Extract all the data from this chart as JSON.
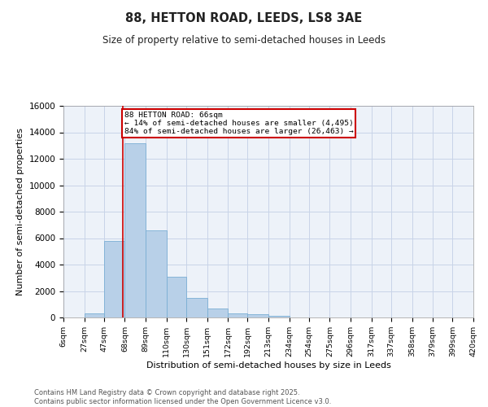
{
  "title": "88, HETTON ROAD, LEEDS, LS8 3AE",
  "subtitle": "Size of property relative to semi-detached houses in Leeds",
  "xlabel": "Distribution of semi-detached houses by size in Leeds",
  "ylabel": "Number of semi-detached properties",
  "annotation_line1": "88 HETTON ROAD: 66sqm",
  "annotation_line2": "← 14% of semi-detached houses are smaller (4,495)",
  "annotation_line3": "84% of semi-detached houses are larger (26,463) →",
  "bins": [
    6,
    27,
    47,
    68,
    89,
    110,
    130,
    151,
    172,
    192,
    213,
    234,
    254,
    275,
    296,
    317,
    337,
    358,
    379,
    399,
    420
  ],
  "bar_values": [
    0,
    300,
    5800,
    13200,
    6600,
    3100,
    1500,
    650,
    320,
    220,
    120,
    0,
    0,
    0,
    0,
    0,
    0,
    0,
    0,
    0
  ],
  "bar_color": "#b8d0e8",
  "bar_edge_color": "#7aaed4",
  "vline_color": "#cc0000",
  "vline_x": 66,
  "annotation_box_facecolor": "#ffffff",
  "annotation_box_edgecolor": "#cc0000",
  "grid_color": "#c8d4e8",
  "background_color": "#edf2f9",
  "ylim": [
    0,
    16000
  ],
  "yticks": [
    0,
    2000,
    4000,
    6000,
    8000,
    10000,
    12000,
    14000,
    16000
  ],
  "footer_line1": "Contains HM Land Registry data © Crown copyright and database right 2025.",
  "footer_line2": "Contains public sector information licensed under the Open Government Licence v3.0."
}
